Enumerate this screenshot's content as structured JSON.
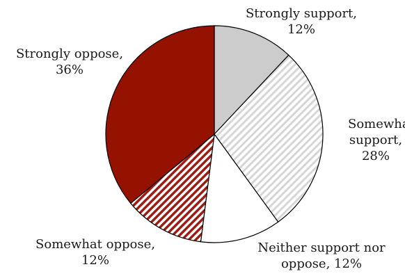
{
  "chart_data": {
    "type": "pie",
    "slices": [
      {
        "label_lines": [
          "Strongly support,",
          "12%"
        ],
        "category": "Strongly support",
        "value": 12,
        "fill": "#cccccc",
        "pattern": "solid"
      },
      {
        "label_lines": [
          "Somewhat",
          "support,",
          "28%"
        ],
        "category": "Somewhat support",
        "value": 28,
        "fill": "#d6d6d6",
        "pattern": "light-diagonal-hatch"
      },
      {
        "label_lines": [
          "Neither support nor",
          "oppose, 12%"
        ],
        "category": "Neither support nor oppose",
        "value": 12,
        "fill": "#ffffff",
        "pattern": "solid"
      },
      {
        "label_lines": [
          "Somewhat oppose,",
          "12%"
        ],
        "category": "Somewhat oppose",
        "value": 12,
        "fill": "#9e1a12",
        "pattern": "red-diagonal-hatch"
      },
      {
        "label_lines": [
          "Strongly oppose,",
          "36%"
        ],
        "category": "Strongly oppose",
        "value": 36,
        "fill": "#961200",
        "pattern": "solid"
      }
    ],
    "start_angle": "12 o'clock",
    "direction": "clockwise",
    "legend": "none",
    "outline_color": "#000000"
  }
}
